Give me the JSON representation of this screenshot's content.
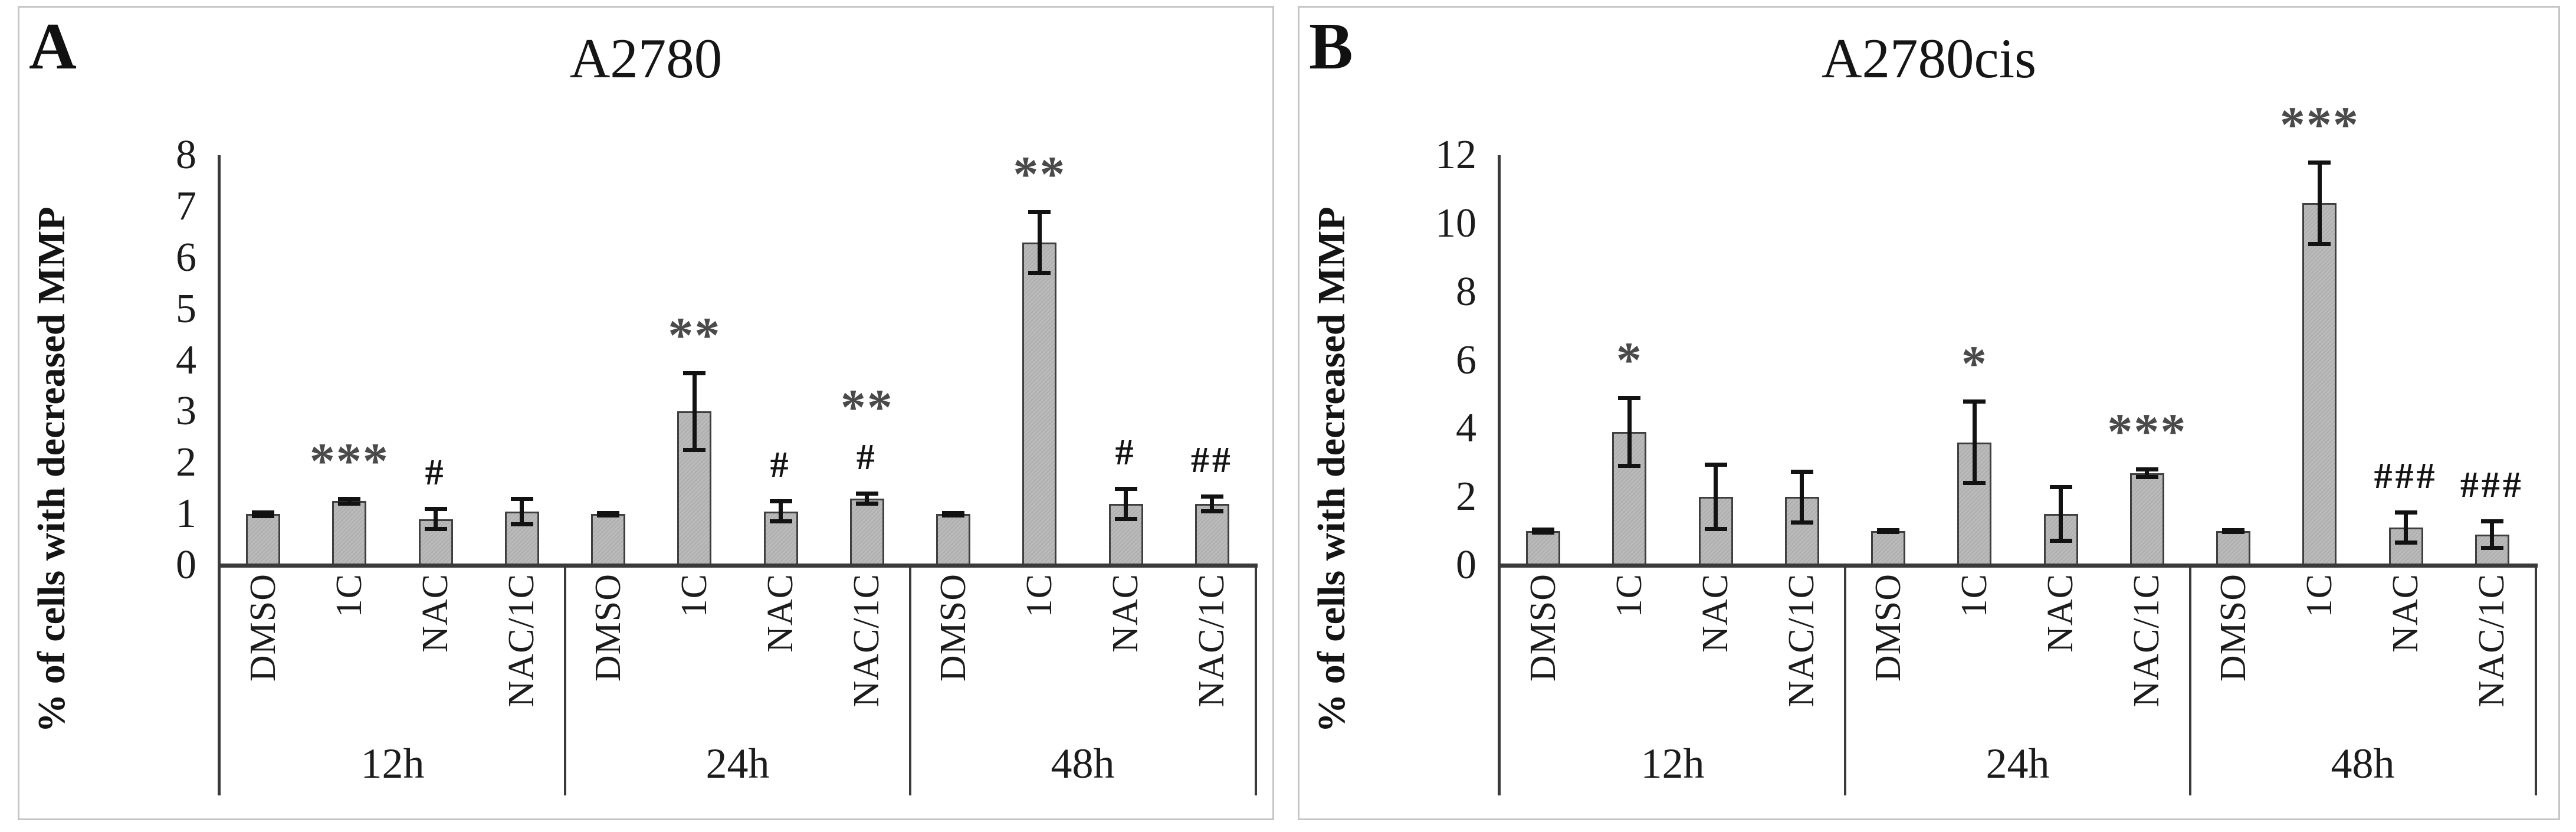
{
  "figure": {
    "description_left_panel_label": "A",
    "description_right_panel_label": "B"
  },
  "colors": {
    "background": "#ffffff",
    "panel_border": "#c6c6c6",
    "bar_fill": "#b7b7b7",
    "bar_border": "#3f3f3f",
    "axis_line": "#3a3a3a",
    "error_bar": "#121212",
    "sig_star": "#4a4a4a",
    "sig_hash": "#141414",
    "text": "#1a1a1a"
  },
  "chart_data": [
    {
      "type": "bar",
      "panel_label": "A",
      "title": "A2780",
      "ylabel": "% of cells with decreased MMP",
      "xlabel": "",
      "ylim": [
        0,
        8
      ],
      "yticks": [
        0,
        1,
        2,
        3,
        4,
        5,
        6,
        7,
        8
      ],
      "grid": false,
      "legend": "none",
      "groups": [
        {
          "label": "12h",
          "bars": [
            {
              "category": "DMSO",
              "value": 1.0,
              "error": 0.04,
              "sig": []
            },
            {
              "category": "1C",
              "value": 1.25,
              "error": 0.05,
              "sig": [
                "***"
              ]
            },
            {
              "category": "NAC",
              "value": 0.9,
              "error": 0.2,
              "sig": [
                "#"
              ]
            },
            {
              "category": "NAC/1C",
              "value": 1.05,
              "error": 0.25,
              "sig": []
            }
          ]
        },
        {
          "label": "24h",
          "bars": [
            {
              "category": "DMSO",
              "value": 1.0,
              "error": 0.03,
              "sig": []
            },
            {
              "category": "1C",
              "value": 3.0,
              "error": 0.75,
              "sig": [
                "**"
              ]
            },
            {
              "category": "NAC",
              "value": 1.05,
              "error": 0.2,
              "sig": [
                "#"
              ]
            },
            {
              "category": "NAC/1C",
              "value": 1.3,
              "error": 0.1,
              "sig": [
                "**",
                "#"
              ]
            }
          ]
        },
        {
          "label": "48h",
          "bars": [
            {
              "category": "DMSO",
              "value": 1.0,
              "error": 0.03,
              "sig": []
            },
            {
              "category": "1C",
              "value": 6.3,
              "error": 0.6,
              "sig": [
                "**"
              ]
            },
            {
              "category": "NAC",
              "value": 1.2,
              "error": 0.3,
              "sig": [
                "#"
              ]
            },
            {
              "category": "NAC/1C",
              "value": 1.2,
              "error": 0.15,
              "sig": [
                "##"
              ]
            }
          ]
        }
      ]
    },
    {
      "type": "bar",
      "panel_label": "B",
      "title": "A2780cis",
      "ylabel": "% of cells with decreased MMP",
      "xlabel": "",
      "ylim": [
        0,
        12
      ],
      "yticks": [
        0,
        2,
        4,
        6,
        8,
        10,
        12
      ],
      "grid": false,
      "legend": "none",
      "groups": [
        {
          "label": "12h",
          "bars": [
            {
              "category": "DMSO",
              "value": 1.0,
              "error": 0.05,
              "sig": []
            },
            {
              "category": "1C",
              "value": 3.9,
              "error": 1.0,
              "sig": [
                "*"
              ]
            },
            {
              "category": "NAC",
              "value": 2.0,
              "error": 0.95,
              "sig": []
            },
            {
              "category": "NAC/1C",
              "value": 2.0,
              "error": 0.75,
              "sig": []
            }
          ]
        },
        {
          "label": "24h",
          "bars": [
            {
              "category": "DMSO",
              "value": 1.0,
              "error": 0.04,
              "sig": []
            },
            {
              "category": "1C",
              "value": 3.6,
              "error": 1.2,
              "sig": [
                "*"
              ]
            },
            {
              "category": "NAC",
              "value": 1.5,
              "error": 0.8,
              "sig": []
            },
            {
              "category": "NAC/1C",
              "value": 2.7,
              "error": 0.12,
              "sig": [
                "***"
              ]
            }
          ]
        },
        {
          "label": "48h",
          "bars": [
            {
              "category": "DMSO",
              "value": 1.0,
              "error": 0.04,
              "sig": []
            },
            {
              "category": "1C",
              "value": 10.6,
              "error": 1.2,
              "sig": [
                "***"
              ]
            },
            {
              "category": "NAC",
              "value": 1.1,
              "error": 0.45,
              "sig": [
                "###"
              ]
            },
            {
              "category": "NAC/1C",
              "value": 0.9,
              "error": 0.4,
              "sig": [
                "###"
              ]
            }
          ]
        }
      ]
    }
  ]
}
